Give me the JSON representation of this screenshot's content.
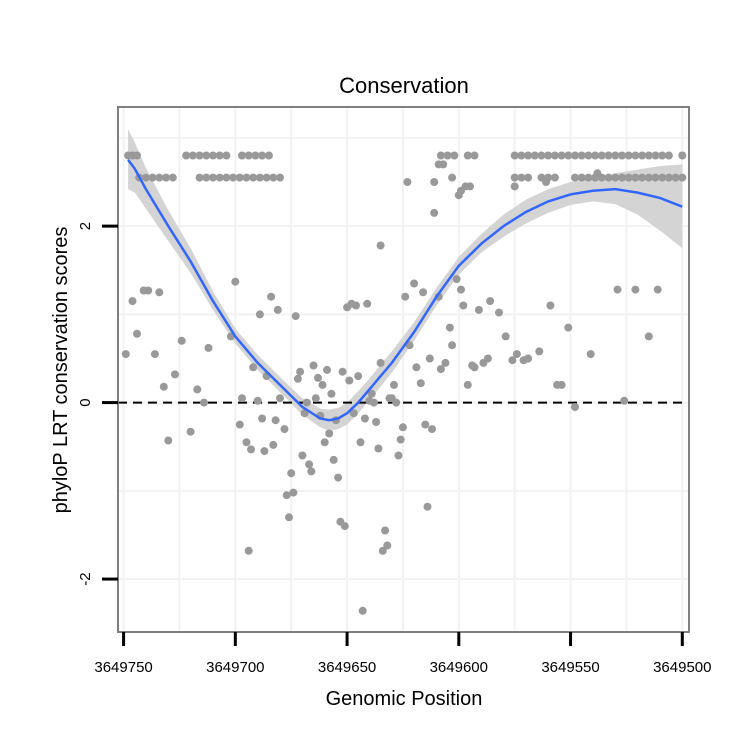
{
  "chart_data": {
    "type": "scatter",
    "title": "Conservation",
    "xlabel": "Genomic Position",
    "ylabel": "phyloP LRT conservation scores",
    "xlim": [
      3649752.5,
      3649497
    ],
    "ylim": [
      -2.6,
      3.35
    ],
    "x_reversed": true,
    "x_ticks": [
      3649750,
      3649700,
      3649650,
      3649600,
      3649550,
      3649500
    ],
    "x_tick_labels": [
      "3649750",
      "3649700",
      "3649650",
      "3649600",
      "3649550",
      "3649500"
    ],
    "y_ticks": [
      2,
      0,
      -2
    ],
    "y_tick_labels": [
      "2",
      "0",
      "-2"
    ],
    "reference_line": {
      "y": 0,
      "style": "dashed"
    },
    "grid": true,
    "colors": {
      "points": "#999999",
      "smooth": "#3366ff",
      "ribbon": "#d4d4d4",
      "panel_border": "#7f7f7f",
      "grid": "#f2f2f2"
    },
    "series": [
      {
        "name": "phyloP",
        "points": [
          [
            3649748,
            2.8
          ],
          [
            3649746,
            2.8
          ],
          [
            3649744,
            2.8
          ],
          [
            3649722,
            2.8
          ],
          [
            3649719,
            2.8
          ],
          [
            3649716,
            2.8
          ],
          [
            3649713,
            2.8
          ],
          [
            3649710,
            2.8
          ],
          [
            3649707,
            2.8
          ],
          [
            3649704,
            2.8
          ],
          [
            3649697,
            2.8
          ],
          [
            3649694,
            2.8
          ],
          [
            3649691,
            2.8
          ],
          [
            3649688,
            2.8
          ],
          [
            3649685,
            2.8
          ],
          [
            3649608,
            2.8
          ],
          [
            3649605,
            2.8
          ],
          [
            3649602,
            2.8
          ],
          [
            3649596,
            2.8
          ],
          [
            3649593,
            2.8
          ],
          [
            3649575,
            2.8
          ],
          [
            3649572,
            2.8
          ],
          [
            3649569,
            2.8
          ],
          [
            3649566,
            2.8
          ],
          [
            3649563,
            2.8
          ],
          [
            3649560,
            2.8
          ],
          [
            3649557,
            2.8
          ],
          [
            3649554,
            2.8
          ],
          [
            3649551,
            2.8
          ],
          [
            3649548,
            2.8
          ],
          [
            3649545,
            2.8
          ],
          [
            3649542,
            2.8
          ],
          [
            3649539,
            2.8
          ],
          [
            3649536,
            2.8
          ],
          [
            3649533,
            2.8
          ],
          [
            3649530,
            2.8
          ],
          [
            3649527,
            2.8
          ],
          [
            3649524,
            2.8
          ],
          [
            3649521,
            2.8
          ],
          [
            3649518,
            2.8
          ],
          [
            3649515,
            2.8
          ],
          [
            3649512,
            2.8
          ],
          [
            3649509,
            2.8
          ],
          [
            3649506,
            2.8
          ],
          [
            3649500,
            2.8
          ],
          [
            3649743,
            2.55
          ],
          [
            3649740,
            2.55
          ],
          [
            3649737,
            2.55
          ],
          [
            3649734,
            2.55
          ],
          [
            3649731,
            2.55
          ],
          [
            3649728,
            2.55
          ],
          [
            3649716,
            2.55
          ],
          [
            3649713,
            2.55
          ],
          [
            3649710,
            2.55
          ],
          [
            3649707,
            2.55
          ],
          [
            3649704,
            2.55
          ],
          [
            3649701,
            2.55
          ],
          [
            3649698,
            2.55
          ],
          [
            3649695,
            2.55
          ],
          [
            3649692,
            2.55
          ],
          [
            3649689,
            2.55
          ],
          [
            3649686,
            2.55
          ],
          [
            3649683,
            2.55
          ],
          [
            3649680,
            2.55
          ],
          [
            3649575,
            2.55
          ],
          [
            3649572,
            2.55
          ],
          [
            3649569,
            2.55
          ],
          [
            3649563,
            2.55
          ],
          [
            3649560,
            2.55
          ],
          [
            3649557,
            2.55
          ],
          [
            3649548,
            2.55
          ],
          [
            3649545,
            2.55
          ],
          [
            3649542,
            2.55
          ],
          [
            3649539,
            2.55
          ],
          [
            3649536,
            2.55
          ],
          [
            3649533,
            2.55
          ],
          [
            3649530,
            2.55
          ],
          [
            3649527,
            2.55
          ],
          [
            3649524,
            2.55
          ],
          [
            3649521,
            2.55
          ],
          [
            3649518,
            2.55
          ],
          [
            3649515,
            2.55
          ],
          [
            3649512,
            2.55
          ],
          [
            3649509,
            2.55
          ],
          [
            3649506,
            2.55
          ],
          [
            3649503,
            2.55
          ],
          [
            3649500,
            2.55
          ],
          [
            3649609,
            2.7
          ],
          [
            3649607,
            2.7
          ],
          [
            3649603,
            2.55
          ],
          [
            3649600,
            2.35
          ],
          [
            3649599,
            2.4
          ],
          [
            3649597,
            2.45
          ],
          [
            3649595,
            2.45
          ],
          [
            3649575,
            2.45
          ],
          [
            3649561,
            2.5
          ],
          [
            3649611,
            2.5
          ],
          [
            3649611,
            2.15
          ],
          [
            3649635,
            1.78
          ],
          [
            3649538,
            2.6
          ],
          [
            3649749,
            0.55
          ],
          [
            3649746,
            1.15
          ],
          [
            3649744,
            0.78
          ],
          [
            3649741,
            1.27
          ],
          [
            3649739,
            1.27
          ],
          [
            3649736,
            0.55
          ],
          [
            3649734,
            1.25
          ],
          [
            3649732,
            0.18
          ],
          [
            3649730,
            -0.43
          ],
          [
            3649727,
            0.32
          ],
          [
            3649724,
            0.7
          ],
          [
            3649720,
            -0.33
          ],
          [
            3649717,
            0.15
          ],
          [
            3649714,
            0.0
          ],
          [
            3649712,
            0.62
          ],
          [
            3649702,
            0.75
          ],
          [
            3649700,
            1.37
          ],
          [
            3649698,
            -0.25
          ],
          [
            3649697,
            0.05
          ],
          [
            3649695,
            -0.45
          ],
          [
            3649694,
            -1.68
          ],
          [
            3649693,
            -0.53
          ],
          [
            3649692,
            0.4
          ],
          [
            3649690,
            0.02
          ],
          [
            3649689,
            1.0
          ],
          [
            3649688,
            -0.18
          ],
          [
            3649687,
            -0.55
          ],
          [
            3649686,
            0.3
          ],
          [
            3649684,
            1.2
          ],
          [
            3649683,
            -0.48
          ],
          [
            3649682,
            -0.2
          ],
          [
            3649681,
            1.05
          ],
          [
            3649680,
            0.05
          ],
          [
            3649678,
            -0.3
          ],
          [
            3649677,
            -1.05
          ],
          [
            3649676,
            -1.3
          ],
          [
            3649675,
            -0.8
          ],
          [
            3649674,
            -1.02
          ],
          [
            3649673,
            0.98
          ],
          [
            3649672,
            0.27
          ],
          [
            3649671,
            0.35
          ],
          [
            3649670,
            -0.6
          ],
          [
            3649669,
            -0.12
          ],
          [
            3649668,
            0.0
          ],
          [
            3649667,
            -0.7
          ],
          [
            3649666,
            -0.78
          ],
          [
            3649665,
            0.42
          ],
          [
            3649664,
            0.05
          ],
          [
            3649663,
            0.28
          ],
          [
            3649662,
            -0.15
          ],
          [
            3649661,
            0.2
          ],
          [
            3649660,
            -0.45
          ],
          [
            3649659,
            0.37
          ],
          [
            3649658,
            -0.35
          ],
          [
            3649657,
            0.1
          ],
          [
            3649656,
            -0.65
          ],
          [
            3649655,
            -0.2
          ],
          [
            3649654,
            -0.85
          ],
          [
            3649653,
            -1.35
          ],
          [
            3649652,
            0.35
          ],
          [
            3649651,
            -1.4
          ],
          [
            3649650,
            1.08
          ],
          [
            3649649,
            0.25
          ],
          [
            3649648,
            1.12
          ],
          [
            3649647,
            -0.12
          ],
          [
            3649646,
            1.1
          ],
          [
            3649645,
            0.3
          ],
          [
            3649644,
            -0.45
          ],
          [
            3649643,
            -2.36
          ],
          [
            3649642,
            -0.18
          ],
          [
            3649641,
            1.12
          ],
          [
            3649640,
            0.02
          ],
          [
            3649639,
            0.1
          ],
          [
            3649638,
            0.0
          ],
          [
            3649637,
            -0.22
          ],
          [
            3649636,
            -0.52
          ],
          [
            3649635,
            0.45
          ],
          [
            3649634,
            -1.68
          ],
          [
            3649633,
            -1.45
          ],
          [
            3649632,
            -1.62
          ],
          [
            3649631,
            0.05
          ],
          [
            3649630,
            0.05
          ],
          [
            3649629,
            0.2
          ],
          [
            3649628,
            0.0
          ],
          [
            3649627,
            -0.6
          ],
          [
            3649626,
            -0.42
          ],
          [
            3649625,
            -0.28
          ],
          [
            3649624,
            1.2
          ],
          [
            3649623,
            2.5
          ],
          [
            3649622,
            0.65
          ],
          [
            3649620,
            1.35
          ],
          [
            3649619,
            0.4
          ],
          [
            3649617,
            0.22
          ],
          [
            3649616,
            1.25
          ],
          [
            3649615,
            -0.25
          ],
          [
            3649614,
            -1.18
          ],
          [
            3649613,
            0.5
          ],
          [
            3649612,
            -0.3
          ],
          [
            3649609,
            1.2
          ],
          [
            3649608,
            0.38
          ],
          [
            3649606,
            0.45
          ],
          [
            3649604,
            0.85
          ],
          [
            3649603,
            0.65
          ],
          [
            3649601,
            1.4
          ],
          [
            3649599,
            1.28
          ],
          [
            3649598,
            1.1
          ],
          [
            3649596,
            0.2
          ],
          [
            3649594,
            0.42
          ],
          [
            3649593,
            0.4
          ],
          [
            3649591,
            1.05
          ],
          [
            3649589,
            0.45
          ],
          [
            3649587,
            0.5
          ],
          [
            3649586,
            1.15
          ],
          [
            3649582,
            1.02
          ],
          [
            3649579,
            0.75
          ],
          [
            3649576,
            0.48
          ],
          [
            3649574,
            0.55
          ],
          [
            3649571,
            0.48
          ],
          [
            3649569,
            0.5
          ],
          [
            3649564,
            0.58
          ],
          [
            3649559,
            1.1
          ],
          [
            3649556,
            0.2
          ],
          [
            3649554,
            0.2
          ],
          [
            3649551,
            0.85
          ],
          [
            3649548,
            -0.05
          ],
          [
            3649541,
            0.55
          ],
          [
            3649529,
            1.28
          ],
          [
            3649526,
            0.02
          ],
          [
            3649521,
            1.28
          ],
          [
            3649515,
            0.75
          ],
          [
            3649511,
            1.28
          ]
        ]
      }
    ],
    "smooth": {
      "name": "loess",
      "x": [
        3649748,
        3649745,
        3649740,
        3649730,
        3649720,
        3649710,
        3649700,
        3649690,
        3649680,
        3649670,
        3649662,
        3649658,
        3649654,
        3649650,
        3649645,
        3649640,
        3649635,
        3649630,
        3649620,
        3649610,
        3649600,
        3649590,
        3649580,
        3649570,
        3649560,
        3649550,
        3649540,
        3649530,
        3649520,
        3649510,
        3649500
      ],
      "y": [
        2.75,
        2.65,
        2.42,
        2.0,
        1.6,
        1.15,
        0.75,
        0.45,
        0.2,
        -0.05,
        -0.18,
        -0.2,
        -0.18,
        -0.12,
        0.0,
        0.15,
        0.3,
        0.45,
        0.8,
        1.2,
        1.55,
        1.8,
        2.0,
        2.16,
        2.28,
        2.36,
        2.4,
        2.42,
        2.38,
        2.32,
        2.22
      ],
      "lower": [
        2.42,
        2.38,
        2.2,
        1.83,
        1.47,
        1.05,
        0.67,
        0.37,
        0.12,
        -0.14,
        -0.28,
        -0.32,
        -0.3,
        -0.25,
        -0.12,
        0.03,
        0.18,
        0.34,
        0.7,
        1.1,
        1.45,
        1.7,
        1.88,
        2.03,
        2.15,
        2.24,
        2.28,
        2.25,
        2.13,
        1.95,
        1.75
      ],
      "upper": [
        3.1,
        2.95,
        2.66,
        2.18,
        1.75,
        1.26,
        0.84,
        0.54,
        0.29,
        0.05,
        -0.07,
        -0.08,
        -0.06,
        0.0,
        0.13,
        0.27,
        0.43,
        0.58,
        0.91,
        1.3,
        1.65,
        1.91,
        2.13,
        2.3,
        2.42,
        2.5,
        2.55,
        2.6,
        2.64,
        2.68,
        2.7
      ]
    }
  }
}
